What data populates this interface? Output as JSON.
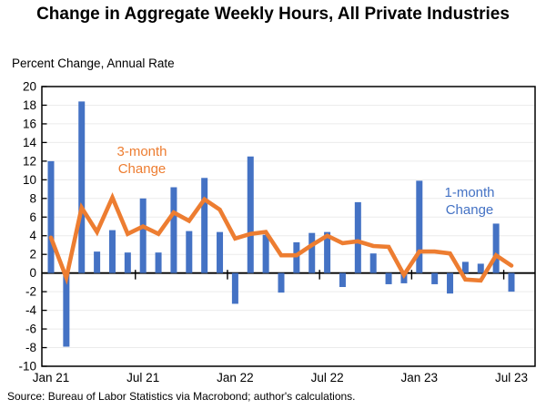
{
  "title": "Change in Aggregate Weekly Hours, All Private Industries",
  "y_axis_title": "Percent Change, Annual Rate",
  "source": "Source: Bureau of Labor Statistics via Macrobond; author's calculations.",
  "annotations": {
    "three_month": {
      "line1": "3-month",
      "line2": "Change"
    },
    "one_month": {
      "line1": "1-month",
      "line2": "Change"
    }
  },
  "colors": {
    "bar_blue": "#4472C4",
    "line_orange": "#ED7D31",
    "gridline": "#EBEBEB",
    "axis_black": "#000000"
  },
  "chart_data": {
    "type": "bar",
    "categories": [
      "Jan 21",
      "Feb 21",
      "Mar 21",
      "Apr 21",
      "May 21",
      "Jun 21",
      "Jul 21",
      "Aug 21",
      "Sep 21",
      "Oct 21",
      "Nov 21",
      "Dec 21",
      "Jan 22",
      "Feb 22",
      "Mar 22",
      "Apr 22",
      "May 22",
      "Jun 22",
      "Jul 22",
      "Aug 22",
      "Sep 22",
      "Oct 22",
      "Nov 22",
      "Dec 22",
      "Jan 23",
      "Feb 23",
      "Mar 23",
      "Apr 23",
      "May 23",
      "Jun 23",
      "Jul 23"
    ],
    "series": [
      {
        "name": "1-month Change",
        "type": "bar",
        "color": "#4472C4",
        "values": [
          12.0,
          -7.9,
          18.4,
          2.3,
          4.6,
          2.2,
          8.0,
          2.2,
          9.2,
          4.5,
          10.2,
          4.4,
          -3.3,
          12.5,
          4.1,
          -2.1,
          3.3,
          4.3,
          4.4,
          -1.5,
          7.6,
          2.1,
          -1.2,
          -1.1,
          9.9,
          -1.2,
          -2.2,
          1.2,
          1.0,
          5.3,
          -2.0
        ]
      },
      {
        "name": "3-month Change",
        "type": "line",
        "color": "#ED7D31",
        "values": [
          3.8,
          -0.5,
          7.0,
          4.4,
          8.1,
          4.2,
          5.0,
          4.2,
          6.5,
          5.6,
          7.9,
          6.8,
          3.7,
          4.2,
          4.4,
          1.9,
          1.9,
          3.0,
          4.0,
          3.2,
          3.4,
          2.9,
          2.8,
          -0.2,
          2.3,
          2.3,
          2.1,
          -0.7,
          -0.8,
          1.9,
          0.8
        ]
      }
    ],
    "title": "Change in Aggregate Weekly Hours, All Private Industries",
    "ylabel": "Percent Change, Annual Rate",
    "ylim": [
      -10,
      20
    ],
    "yticks": [
      20,
      18,
      16,
      14,
      12,
      10,
      8,
      6,
      4,
      2,
      0,
      -2,
      -4,
      -6,
      -8,
      -10
    ],
    "x_tick_indices": [
      0,
      6,
      12,
      18,
      24,
      30
    ],
    "x_tick_labels": [
      "Jan 21",
      "Jul 21",
      "Jan 22",
      "Jul 22",
      "Jan 23",
      "Jul 23"
    ],
    "grid": "horizontal",
    "legend_position": "inline-annotations"
  }
}
